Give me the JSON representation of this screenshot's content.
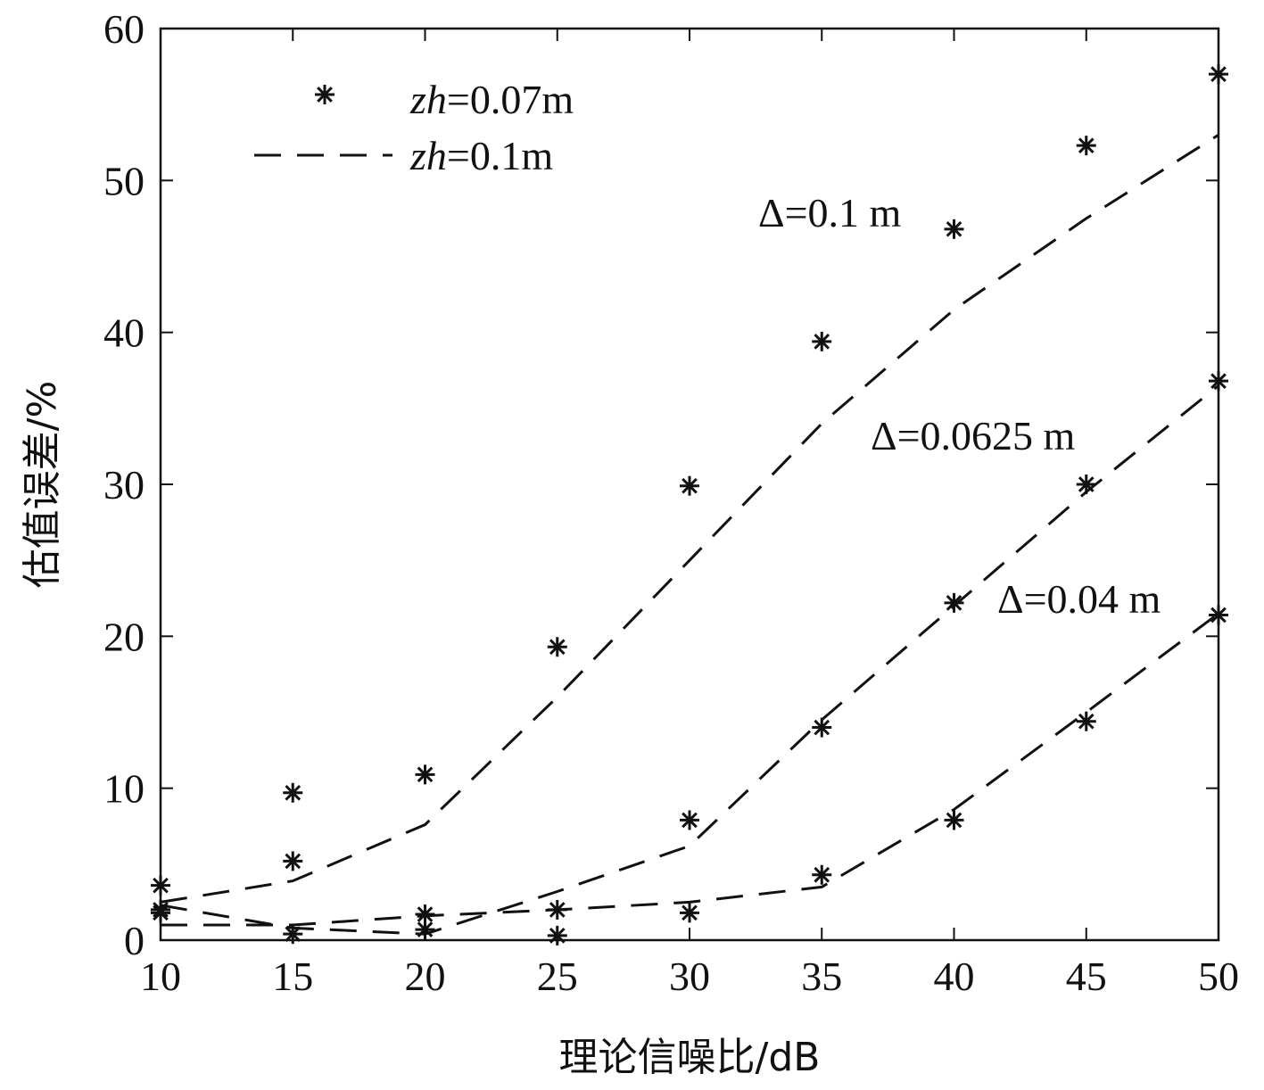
{
  "chart_data": {
    "type": "line",
    "xlabel": "理论信噪比/dB",
    "ylabel": "估值误差/%",
    "xlim": [
      10,
      50
    ],
    "ylim": [
      0,
      60
    ],
    "xticks": [
      10,
      15,
      20,
      25,
      30,
      35,
      40,
      45,
      50
    ],
    "yticks": [
      0,
      10,
      20,
      30,
      40,
      50,
      60
    ],
    "grid": false,
    "legend_position": "top-left",
    "legend": [
      {
        "var": "zh",
        "value": "=0.07m",
        "style": "star markers"
      },
      {
        "var": "zh",
        "value": "=0.1m",
        "style": "dashed line"
      }
    ],
    "groups": [
      {
        "annotation": "Δ=0.1 m",
        "markers": {
          "x": [
            10,
            15,
            20,
            25,
            30,
            35,
            40,
            45,
            50
          ],
          "y": [
            3.6,
            9.7,
            10.9,
            19.3,
            29.9,
            39.4,
            46.8,
            52.3,
            57.0
          ]
        },
        "line": {
          "x": [
            10,
            15,
            20,
            25,
            30,
            35,
            40,
            45,
            50
          ],
          "y": [
            2.5,
            3.9,
            7.6,
            16.0,
            25.0,
            34.0,
            41.5,
            47.5,
            53.0
          ]
        }
      },
      {
        "annotation": "Δ=0.0625 m",
        "markers": {
          "x": [
            10,
            15,
            20,
            25,
            30,
            35,
            40,
            45,
            50
          ],
          "y": [
            2.0,
            5.2,
            1.7,
            0.3,
            7.9,
            14.0,
            22.2,
            30.0,
            36.8
          ]
        },
        "line": {
          "x": [
            10,
            15,
            20,
            25,
            30,
            35,
            40,
            45,
            50
          ],
          "y": [
            2.3,
            0.8,
            0.4,
            3.2,
            6.2,
            14.5,
            22.0,
            29.5,
            36.5
          ]
        }
      },
      {
        "annotation": "Δ=0.04 m",
        "markers": {
          "x": [
            10,
            15,
            20,
            25,
            30,
            35,
            40,
            45,
            50
          ],
          "y": [
            1.8,
            0.4,
            0.7,
            2.0,
            1.8,
            4.3,
            7.9,
            14.4,
            21.4
          ]
        },
        "line": {
          "x": [
            10,
            15,
            20,
            25,
            30,
            35,
            40,
            45,
            50
          ],
          "y": [
            1.0,
            1.0,
            1.6,
            2.0,
            2.5,
            3.5,
            8.6,
            15.0,
            21.5
          ]
        }
      }
    ],
    "colors": {
      "ink": "#111111",
      "background": "#ffffff"
    }
  }
}
